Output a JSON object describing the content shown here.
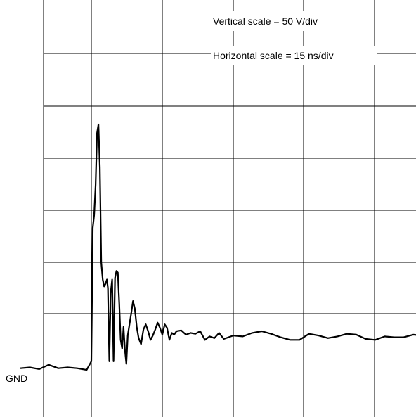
{
  "chart_data": {
    "type": "line",
    "title": "",
    "xlabel": "",
    "ylabel": "",
    "grid": true,
    "legend": "none",
    "x_units": "ns",
    "y_units": "V",
    "x_divisions": 8,
    "y_divisions": 8,
    "xlim": [
      -15,
      105
    ],
    "ylim": [
      -50,
      350
    ],
    "annotations": {
      "vertical_scale": "Vertical scale = 50 V/div",
      "horizontal_scale": "Horizontal scale = 15 ns/div",
      "ground_marker": "GND"
    },
    "series": [
      {
        "color": "#000000",
        "x": [
          -15,
          -13,
          -11,
          -9,
          -7,
          -5,
          -3,
          -1,
          0,
          0.3,
          0.6,
          0.9,
          1.2,
          1.5,
          1.8,
          2.1,
          2.4,
          2.7,
          3.0,
          3.3,
          3.5,
          3.8,
          4.1,
          4.4,
          4.7,
          5.0,
          5.3,
          5.6,
          5.9,
          6.2,
          6.5,
          6.8,
          7.1,
          7.4,
          7.7,
          8.0,
          8.4,
          8.8,
          9.2,
          9.6,
          10.0,
          10.5,
          11.0,
          11.5,
          12.0,
          12.5,
          13.0,
          13.5,
          14.0,
          14.5,
          15.0,
          15.5,
          16.0,
          16.5,
          17.0,
          17.5,
          18.0,
          19.0,
          20.0,
          21.0,
          22.0,
          23.0,
          24.0,
          25.0,
          26.0,
          27.0,
          28.0,
          30.0,
          32.0,
          34.0,
          36.0,
          38.0,
          40.0,
          42.0,
          44.0,
          46.0,
          48.0,
          50.0,
          52.0,
          54.0,
          56.0,
          58.0,
          60.0,
          62.0,
          64.0,
          66.0,
          68.0,
          70.0,
          72.0,
          74.0,
          76.0,
          78.0,
          80.0,
          82.0,
          84.0,
          86.0,
          88.0,
          90.0,
          92.0,
          94.0,
          96.0,
          98.0,
          100.0,
          102.0,
          104.0,
          105.0
        ],
        "y": [
          -3,
          -2,
          -4,
          1,
          -3,
          -2,
          -3,
          -5,
          5,
          160,
          175,
          210,
          270,
          280,
          230,
          120,
          100,
          92,
          95,
          100,
          90,
          5,
          85,
          100,
          5,
          102,
          110,
          108,
          72,
          30,
          20,
          45,
          18,
          2,
          35,
          46,
          60,
          75,
          66,
          45,
          32,
          25,
          42,
          48,
          40,
          30,
          35,
          42,
          50,
          44,
          36,
          48,
          44,
          30,
          38,
          36,
          40,
          41,
          36,
          38,
          37,
          40,
          30,
          34,
          32,
          38,
          31,
          35,
          34,
          38,
          40,
          37,
          33,
          30,
          30,
          37,
          35,
          32,
          34,
          37,
          36,
          31,
          30,
          34,
          33,
          33,
          36,
          35,
          32,
          34,
          33,
          32,
          32,
          31,
          34,
          29,
          33,
          30,
          27,
          30,
          29,
          27,
          28,
          26,
          27,
          26
        ]
      }
    ]
  }
}
